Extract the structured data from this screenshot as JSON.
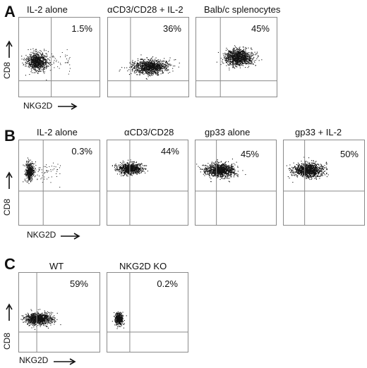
{
  "panels": [
    {
      "letter": "A",
      "y_label": "CD8",
      "x_label": "NKG2D",
      "plots": [
        {
          "title": "IL-2 alone",
          "percent": "1.5%"
        },
        {
          "title": "αCD3/CD28 + IL-2",
          "percent": "36%"
        },
        {
          "title": "Balb/c splenocytes",
          "percent": "45%"
        }
      ]
    },
    {
      "letter": "B",
      "y_label": "CD8",
      "x_label": "NKG2D",
      "plots": [
        {
          "title": "IL-2 alone",
          "percent": "0.3%"
        },
        {
          "title": "αCD3/CD28",
          "percent": "44%"
        },
        {
          "title": "gp33 alone",
          "percent": "45%"
        },
        {
          "title": "gp33 + IL-2",
          "percent": "50%"
        }
      ]
    },
    {
      "letter": "C",
      "y_label": "CD8",
      "x_label": "NKG2D",
      "plots": [
        {
          "title": "WT",
          "percent": "59%"
        },
        {
          "title": "NKG2D KO",
          "percent": "0.2%"
        }
      ]
    }
  ],
  "colors": {
    "dots": "#111111",
    "quadrant_lines": "#8a8a8a",
    "frame": "#8a8a8a"
  }
}
